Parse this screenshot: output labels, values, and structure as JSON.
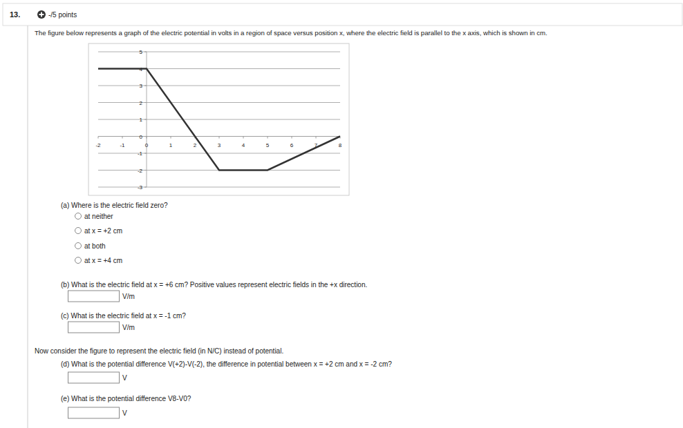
{
  "header": {
    "number": "13.",
    "points": "-/5 points"
  },
  "question": "The figure below represents a graph of the electric potential in volts in a region of space versus position x, where the electric field is parallel to the x axis, which is shown in cm.",
  "chart_data": {
    "type": "line",
    "x": [
      -2,
      0,
      3,
      5,
      8
    ],
    "values": [
      4,
      4,
      -2,
      -2,
      0
    ],
    "color": "#333333",
    "xlim": [
      -2,
      8
    ],
    "ylim": [
      -3,
      5
    ],
    "xticks": [
      -2,
      -1,
      0,
      1,
      2,
      3,
      4,
      5,
      6,
      7,
      8
    ],
    "yticks": [
      -3,
      -2,
      -1,
      0,
      1,
      2,
      3,
      4,
      5
    ],
    "grid": true
  },
  "part_a": {
    "text": "(a) Where is the electric field zero?",
    "options": [
      "at neither",
      "at x = +2 cm",
      "at both",
      "at x = +4 cm"
    ]
  },
  "part_b": {
    "text": "(b) What is the electric field at x = +6 cm? Positive values represent electric fields in the +x direction.",
    "unit": "V/m"
  },
  "part_c": {
    "text": "(c) What is the electric field at x = -1 cm?",
    "unit": "V/m"
  },
  "note": "Now consider the figure to represent the electric field (in N/C) instead of potential.",
  "part_d": {
    "text": "(d) What is the potential difference V(+2)-V(-2), the difference in potential between x = +2 cm and x = -2 cm?",
    "unit": "V"
  },
  "part_e": {
    "text": "(e) What is the potential difference V8-V0?",
    "unit": "V"
  }
}
